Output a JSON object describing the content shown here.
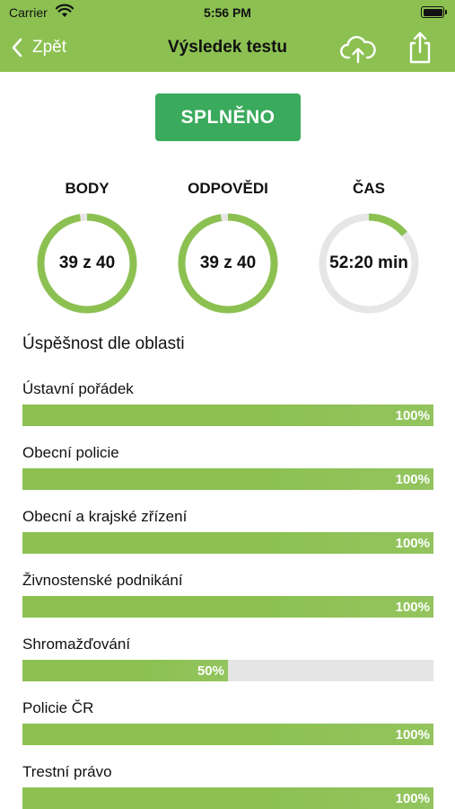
{
  "status_bar": {
    "carrier": "Carrier",
    "time": "5:56 PM"
  },
  "nav": {
    "back_label": "Zpět",
    "title": "Výsledek testu"
  },
  "result": {
    "label": "SPLNĚNO"
  },
  "stats": [
    {
      "label": "BODY",
      "value": "39 z 40",
      "progress": 0.975
    },
    {
      "label": "ODPOVĚDI",
      "value": "39 z 40",
      "progress": 0.975
    },
    {
      "label": "ČAS",
      "value": "52:20 min",
      "progress": 0.14
    }
  ],
  "section_title": "Úspěšnost dle oblasti",
  "areas": [
    {
      "name": "Ústavní pořádek",
      "percent_label": "100%",
      "percent": 100
    },
    {
      "name": "Obecní policie",
      "percent_label": "100%",
      "percent": 100
    },
    {
      "name": "Obecní a krajské zřízení",
      "percent_label": "100%",
      "percent": 100
    },
    {
      "name": "Živnostenské podnikání",
      "percent_label": "100%",
      "percent": 100
    },
    {
      "name": "Shromažďování",
      "percent_label": "50%",
      "percent": 50
    },
    {
      "name": "Policie ČR",
      "percent_label": "100%",
      "percent": 100
    },
    {
      "name": "Trestní právo",
      "percent_label": "100%",
      "percent": 100
    }
  ],
  "colors": {
    "accent": "#8cc152",
    "success": "#3aaa5c",
    "track": "#e5e5e5"
  },
  "icons": [
    "wifi-icon",
    "battery-icon",
    "chevron-left-icon",
    "cloud-upload-icon",
    "share-icon"
  ]
}
